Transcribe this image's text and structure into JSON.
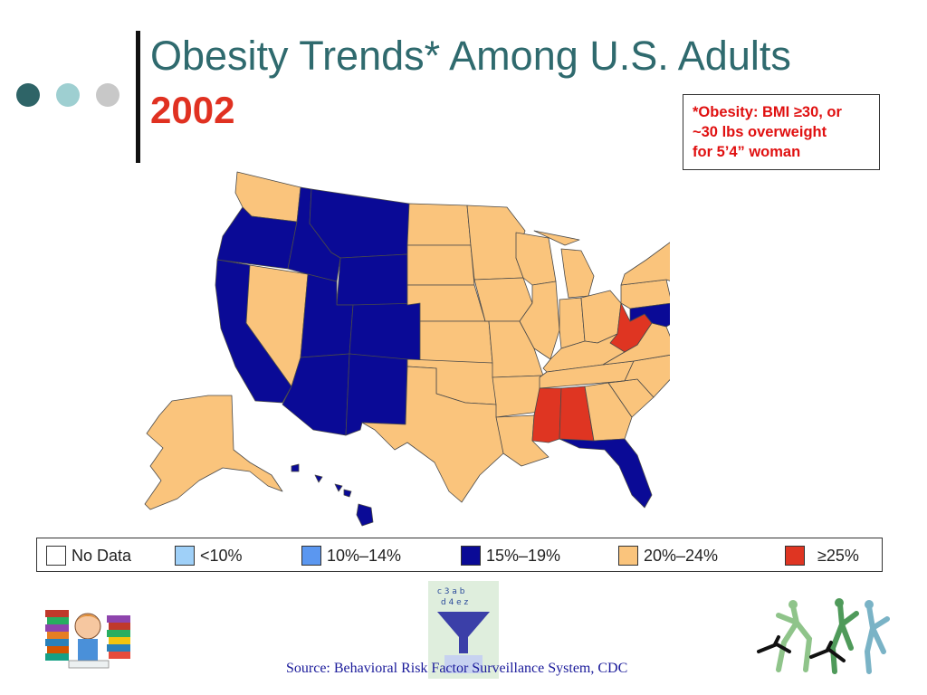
{
  "slide": {
    "title": "Obesity Trends* Among U.S. Adults",
    "year": "2002",
    "note_lines": [
      "*Obesity: BMI ≥30, or",
      "~30 lbs overweight",
      "for 5’4” woman"
    ],
    "source": "Source: Behavioral Risk Factor Surveillance System, CDC"
  },
  "decor": {
    "dot_colors": [
      "#2e6467",
      "#9ecfd1",
      "#c8c8c8"
    ]
  },
  "legend": {
    "items": [
      {
        "label": "No Data",
        "color": "#ffffff"
      },
      {
        "label": "<10%",
        "color": "#9fd0f8"
      },
      {
        "label": "10%–14%",
        "color": "#5b97f0"
      },
      {
        "label": "15%–19%",
        "color": "#0a0a96"
      },
      {
        "label": "20%–24%",
        "color": "#fac47c"
      },
      {
        "label": "≥25%",
        "color": "#df3522"
      }
    ]
  },
  "map_data": {
    "category_colors": {
      "15-19": "#0a0a96",
      "20-24": "#fac47c",
      "25+": "#df3522"
    },
    "state_categories": {
      "WA": "20-24",
      "OR": "15-19",
      "CA": "15-19",
      "NV": "20-24",
      "ID": "15-19",
      "MT": "15-19",
      "WY": "15-19",
      "UT": "15-19",
      "AZ": "15-19",
      "CO": "15-19",
      "NM": "15-19",
      "ND": "20-24",
      "SD": "20-24",
      "NE": "20-24",
      "KS": "20-24",
      "OK": "20-24",
      "TX": "20-24",
      "MN": "20-24",
      "IA": "20-24",
      "MO": "20-24",
      "AR": "20-24",
      "LA": "20-24",
      "WI": "20-24",
      "IL": "20-24",
      "MI": "20-24",
      "IN": "20-24",
      "OH": "20-24",
      "KY": "20-24",
      "TN": "20-24",
      "MS": "25+",
      "AL": "25+",
      "GA": "20-24",
      "FL": "15-19",
      "SC": "20-24",
      "NC": "20-24",
      "VA": "20-24",
      "WV": "25+",
      "PA": "20-24",
      "NY": "20-24",
      "ME": "20-24",
      "NH": "15-19",
      "VT": "15-19",
      "MA": "15-19",
      "CT": "15-19",
      "RI": "15-19",
      "NJ": "15-19",
      "DE": "15-19",
      "MD": "15-19",
      "AK": "20-24",
      "HI": "15-19"
    }
  }
}
